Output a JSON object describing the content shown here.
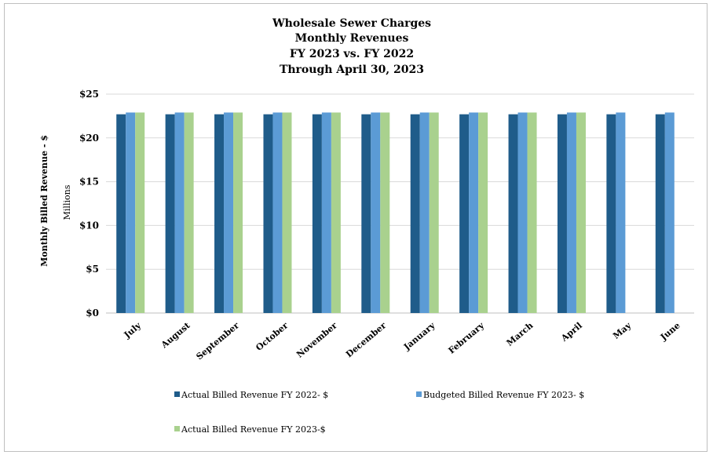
{
  "chart_data": {
    "type": "bar",
    "title": [
      "Wholesale Sewer Charges",
      "Monthly Revenues",
      "FY 2023 vs. FY 2022",
      "Through April 30, 2023"
    ],
    "ylabel": "Monthly Billed Revenue - $",
    "yunit": "Millions",
    "ylim": [
      0,
      25
    ],
    "yticks": [
      {
        "value": 0,
        "label": "$0"
      },
      {
        "value": 5,
        "label": "$5"
      },
      {
        "value": 10,
        "label": "$10"
      },
      {
        "value": 15,
        "label": "$15"
      },
      {
        "value": 20,
        "label": "$20"
      },
      {
        "value": 25,
        "label": "$25"
      }
    ],
    "grid": true,
    "legend_position": "bottom",
    "categories": [
      "July",
      "August",
      "September",
      "October",
      "November",
      "December",
      "January",
      "February",
      "March",
      "April",
      "May",
      "June"
    ],
    "series": [
      {
        "name": "Actual Billed Revenue FY 2022- $",
        "color": "#1f5c8a",
        "values": [
          22.7,
          22.7,
          22.7,
          22.7,
          22.7,
          22.7,
          22.7,
          22.7,
          22.7,
          22.7,
          22.7,
          22.7
        ]
      },
      {
        "name": "Budgeted Billed Revenue FY 2023- $",
        "color": "#5b9bd5",
        "values": [
          22.9,
          22.9,
          22.9,
          22.9,
          22.9,
          22.9,
          22.9,
          22.9,
          22.9,
          22.9,
          22.9,
          22.9
        ]
      },
      {
        "name": "Actual Billed Revenue FY 2023-$",
        "color": "#a9d18e",
        "values": [
          22.9,
          22.9,
          22.9,
          22.9,
          22.9,
          22.9,
          22.9,
          22.9,
          22.9,
          22.9,
          null,
          null
        ]
      }
    ]
  }
}
